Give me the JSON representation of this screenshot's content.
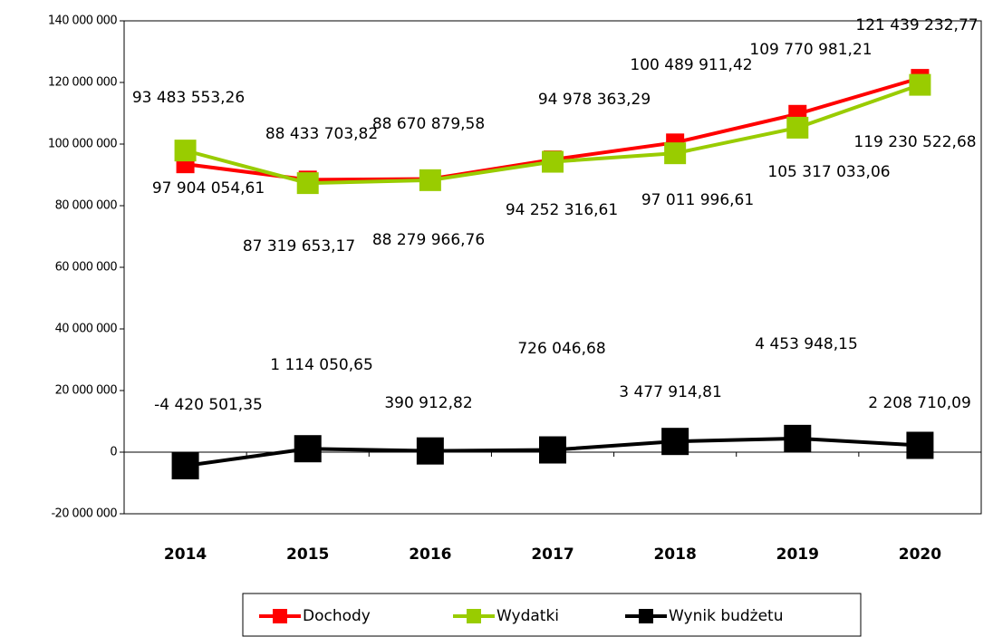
{
  "chart_data": {
    "type": "line",
    "categories": [
      "2014",
      "2015",
      "2016",
      "2017",
      "2018",
      "2019",
      "2020"
    ],
    "series": [
      {
        "name": "Dochody",
        "color": "#ff0000",
        "values": [
          93483553.26,
          88433703.82,
          88670879.58,
          94978363.29,
          100489911.42,
          109770981.21,
          121439232.77
        ],
        "value_labels": [
          "93 483 553,26",
          "88 433 703,82",
          "88 670 879,58",
          "94 978 363,29",
          "100 489 911,42",
          "109 770 981,21",
          "121 439 232,77"
        ]
      },
      {
        "name": "Wydatki",
        "color": "#99cc00",
        "values": [
          97904054.61,
          87319653.17,
          88279966.76,
          94252316.61,
          97011996.61,
          105317033.06,
          119230522.68
        ],
        "value_labels": [
          "97 904 054,61",
          "87 319 653,17",
          "88 279 966,76",
          "94 252 316,61",
          "97 011 996,61",
          "105 317 033,06",
          "119 230 522,68"
        ]
      },
      {
        "name": "Wynik budżetu",
        "color": "#000000",
        "values": [
          -4420501.35,
          1114050.65,
          390912.82,
          726046.68,
          3477914.81,
          4453948.15,
          2208710.09
        ],
        "value_labels": [
          "-4 420 501,35",
          "1 114 050,65",
          "390 912,82",
          "726 046,68",
          "3 477 914,81",
          "4 453 948,15",
          "2 208 710,09"
        ]
      }
    ],
    "ylim": [
      -20000000,
      140000000
    ],
    "yticks": [
      {
        "value": -20000000,
        "label": "-20 000 000"
      },
      0,
      {
        "value": 20000000,
        "label": "20 000 000"
      },
      {
        "value": 40000000,
        "label": "40 000 000"
      },
      {
        "value": 60000000,
        "label": "60 000 000"
      },
      {
        "value": 80000000,
        "label": "80 000 000"
      },
      {
        "value": 100000000,
        "label": "100 000 000"
      },
      {
        "value": 120000000,
        "label": "120 000 000"
      },
      {
        "value": 140000000,
        "label": "140 000 000"
      }
    ],
    "legend": "bottom"
  }
}
